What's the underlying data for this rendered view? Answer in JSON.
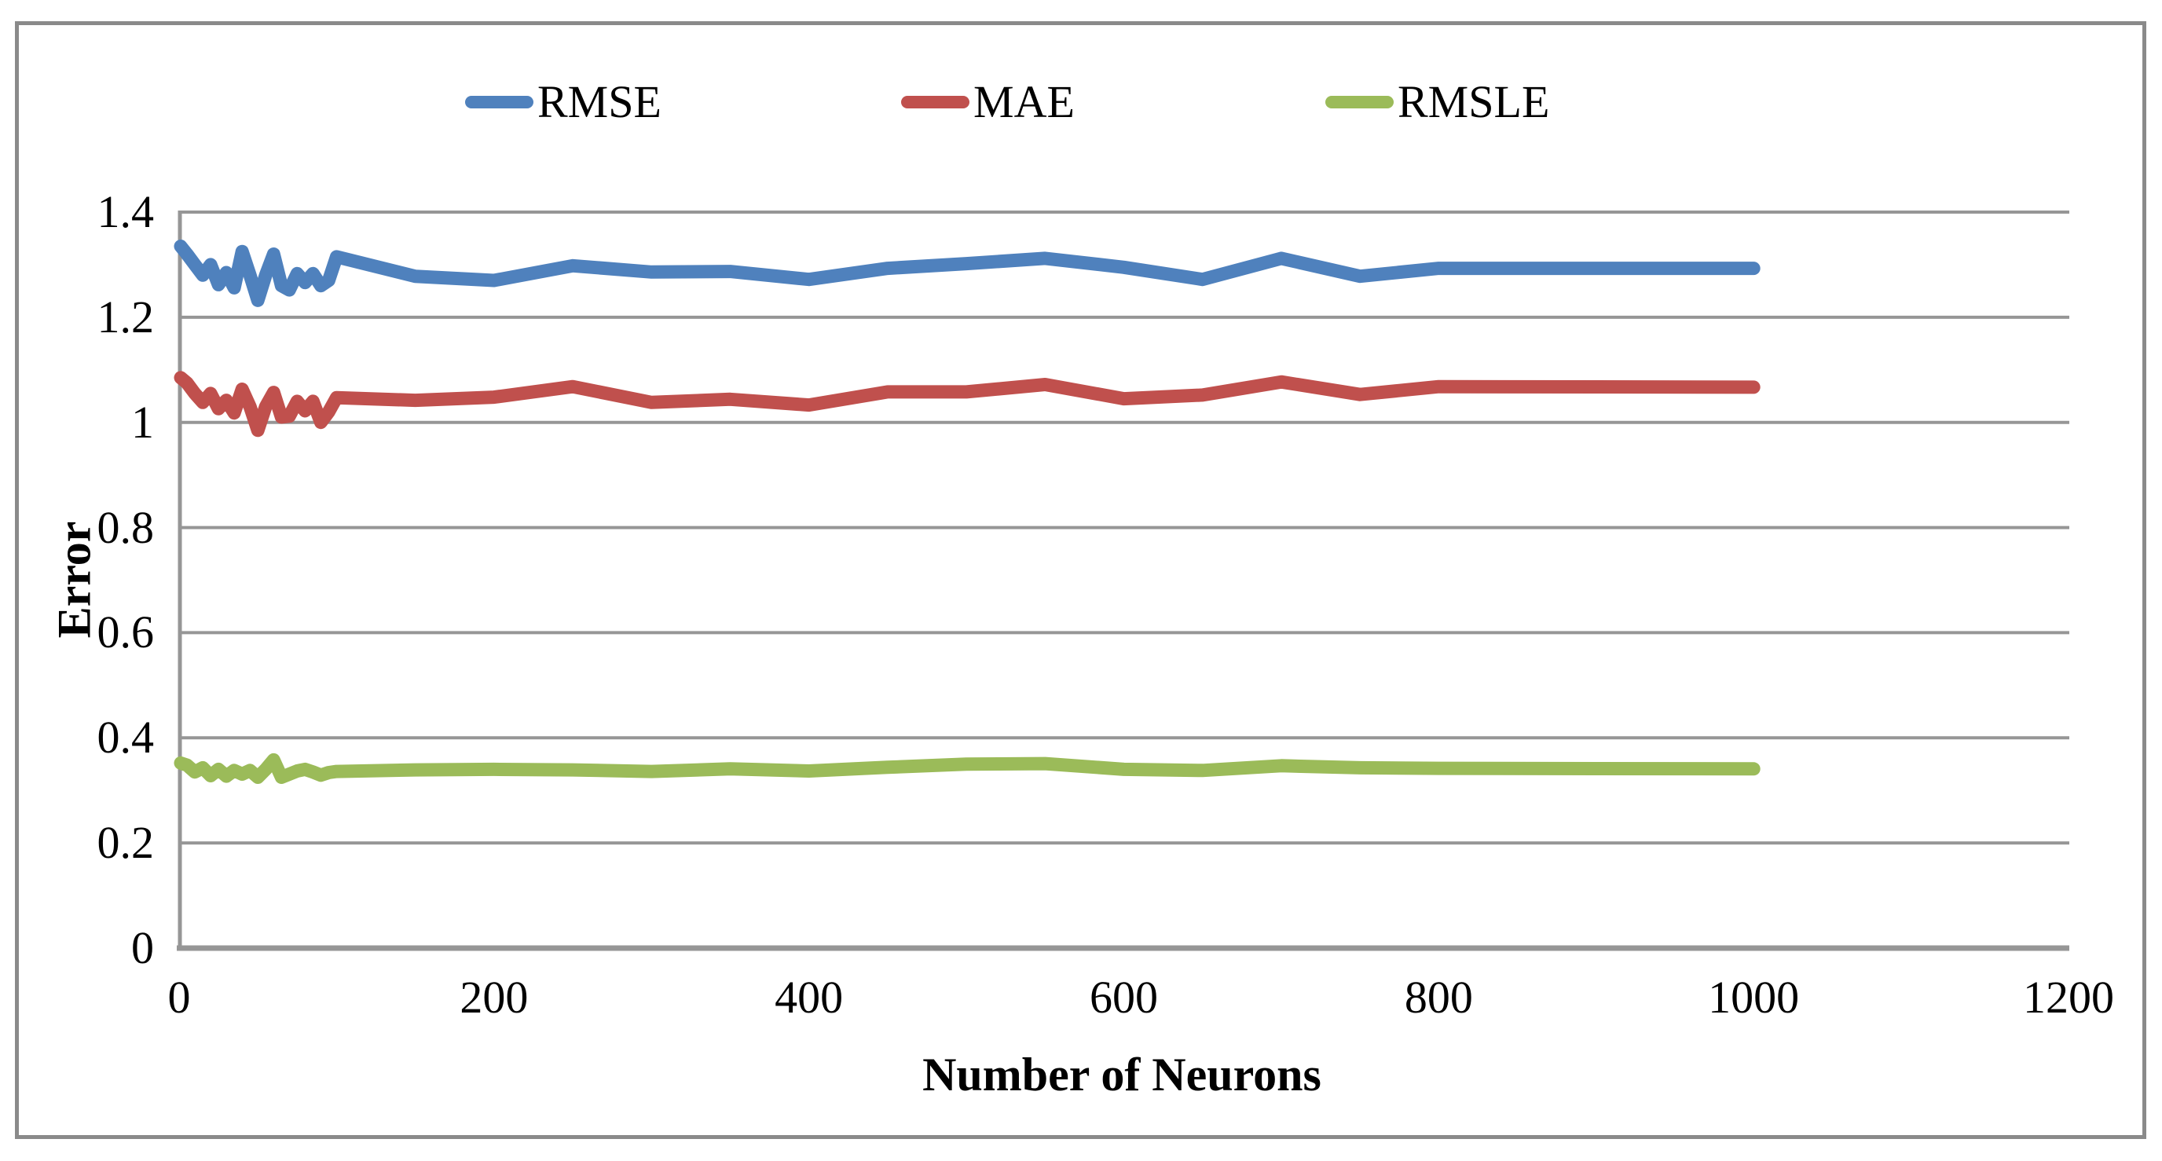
{
  "chart_data": {
    "type": "line",
    "title": "",
    "xlabel": "Number of Neurons",
    "ylabel": "Error",
    "x": [
      1,
      5,
      10,
      15,
      20,
      25,
      30,
      35,
      40,
      45,
      50,
      55,
      60,
      65,
      70,
      75,
      80,
      85,
      90,
      95,
      100,
      150,
      200,
      250,
      300,
      350,
      400,
      450,
      500,
      550,
      600,
      650,
      700,
      750,
      800,
      1000
    ],
    "series": [
      {
        "name": "RMSE",
        "color": "#4F81BD",
        "values": [
          1.335,
          1.32,
          1.3,
          1.28,
          1.3,
          1.262,
          1.285,
          1.256,
          1.325,
          1.28,
          1.232,
          1.28,
          1.32,
          1.26,
          1.252,
          1.283,
          1.266,
          1.283,
          1.26,
          1.27,
          1.315,
          1.278,
          1.27,
          1.298,
          1.286,
          1.287,
          1.272,
          1.293,
          1.302,
          1.312,
          1.295,
          1.272,
          1.312,
          1.278,
          1.293,
          1.293
        ]
      },
      {
        "name": "MAE",
        "color": "#C0504D",
        "values": [
          1.085,
          1.075,
          1.055,
          1.038,
          1.055,
          1.026,
          1.042,
          1.018,
          1.063,
          1.03,
          0.985,
          1.03,
          1.057,
          1.01,
          1.012,
          1.04,
          1.022,
          1.04,
          1.0,
          1.02,
          1.047,
          1.042,
          1.048,
          1.068,
          1.038,
          1.044,
          1.033,
          1.058,
          1.058,
          1.072,
          1.045,
          1.052,
          1.077,
          1.053,
          1.068,
          1.067
        ]
      },
      {
        "name": "RMSLE",
        "color": "#9BBB59",
        "values": [
          0.352,
          0.348,
          0.335,
          0.343,
          0.328,
          0.34,
          0.327,
          0.338,
          0.331,
          0.338,
          0.325,
          0.34,
          0.358,
          0.325,
          0.331,
          0.337,
          0.34,
          0.335,
          0.329,
          0.334,
          0.336,
          0.339,
          0.34,
          0.339,
          0.336,
          0.341,
          0.337,
          0.344,
          0.35,
          0.351,
          0.34,
          0.338,
          0.347,
          0.343,
          0.342,
          0.341
        ]
      }
    ],
    "xlim": [
      0,
      1200
    ],
    "ylim": [
      0,
      1.4
    ],
    "x_ticks": [
      0,
      200,
      400,
      600,
      800,
      1000,
      1200
    ],
    "x_tick_labels": [
      "0",
      "200",
      "400",
      "600",
      "800",
      "1000",
      "1200"
    ],
    "y_ticks": [
      0,
      0.2,
      0.4,
      0.6,
      0.8,
      1.0,
      1.2,
      1.4
    ],
    "y_tick_labels": [
      "0",
      "0.2",
      "0.4",
      "0.6",
      "0.8",
      "1",
      "1.2",
      "1.4"
    ],
    "grid": "horizontal",
    "legend_position": "top",
    "gridline_color": "#969696",
    "axis_color": "#969696",
    "frame_color": "#8A8A8A",
    "line_width": 17
  }
}
